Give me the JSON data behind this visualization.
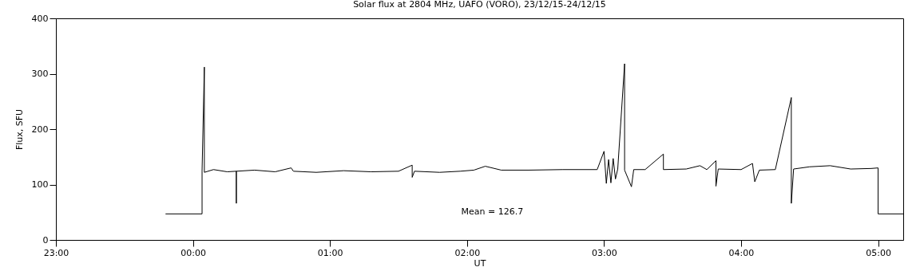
{
  "chart_data": {
    "type": "line",
    "title": "Solar flux at 2804 MHz, UAFO (VORO),  23/12/15-24/12/15",
    "xlabel": "UT",
    "ylabel": "Flux, SFU",
    "xlim": [
      "--12-23T23:00",
      "--12-24T05:11"
    ],
    "xticks": [
      {
        "value": "--12-23T23:00",
        "label": "23:00"
      },
      {
        "value": "--12-24T00:00",
        "label": "00:00"
      },
      {
        "value": "--12-24T01:00",
        "label": "01:00"
      },
      {
        "value": "--12-24T02:00",
        "label": "02:00"
      },
      {
        "value": "--12-24T03:00",
        "label": "03:00"
      },
      {
        "value": "--12-24T04:00",
        "label": "04:00"
      },
      {
        "value": "--12-24T05:00",
        "label": "05:00"
      }
    ],
    "ylim": [
      0,
      400
    ],
    "yticks": [
      0,
      100,
      200,
      300,
      400
    ],
    "grid": false,
    "annotations": [
      "Mean =  126.7"
    ],
    "series": [
      {
        "color": "#000000",
        "x": [
          "--12-23T23:48",
          "--12-24T00:04",
          "--12-24T00:04",
          "--12-24T00:05",
          "--12-24T00:05",
          "--12-24T00:09",
          "--12-24T00:15",
          "--12-24T00:19",
          "--12-24T00:19",
          "--12-24T00:19",
          "--12-24T00:27",
          "--12-24T00:36",
          "--12-24T00:43",
          "--12-24T00:44",
          "--12-24T00:54",
          "--12-24T01:06",
          "--12-24T01:18",
          "--12-24T01:30",
          "--12-24T01:36",
          "--12-24T01:36",
          "--12-24T01:37",
          "--12-24T01:48",
          "--12-24T01:57",
          "--12-24T02:03",
          "--12-24T02:08",
          "--12-24T02:15",
          "--12-24T02:27",
          "--12-24T02:42",
          "--12-24T02:57",
          "--12-24T03:00",
          "--12-24T03:01",
          "--12-24T03:02",
          "--12-24T03:03",
          "--12-24T03:04",
          "--12-24T03:05",
          "--12-24T03:06",
          "--12-24T03:09",
          "--12-24T03:09",
          "--12-24T03:12",
          "--12-24T03:13",
          "--12-24T03:18",
          "--12-24T03:26",
          "--12-24T03:26",
          "--12-24T03:36",
          "--12-24T03:42",
          "--12-24T03:45",
          "--12-24T03:49",
          "--12-24T03:49",
          "--12-24T03:50",
          "--12-24T04:00",
          "--12-24T04:05",
          "--12-24T04:06",
          "--12-24T04:08",
          "--12-24T04:15",
          "--12-24T04:22",
          "--12-24T04:22",
          "--12-24T04:23",
          "--12-24T04:30",
          "--12-24T04:39",
          "--12-24T04:48",
          "--12-24T04:57",
          "--12-24T05:00",
          "--12-24T05:00",
          "--12-24T05:11"
        ],
        "values": [
          47,
          47,
          125,
          312,
          122,
          127,
          123,
          124,
          66,
          124,
          126,
          123,
          130,
          124,
          122,
          125,
          123,
          124,
          135,
          113,
          124,
          122,
          124,
          126,
          133,
          126,
          126,
          127,
          127,
          160,
          102,
          145,
          103,
          147,
          110,
          128,
          318,
          126,
          96,
          127,
          127,
          155,
          127,
          128,
          134,
          127,
          143,
          97,
          128,
          127,
          138,
          105,
          126,
          127,
          257,
          66,
          128,
          132,
          134,
          128,
          129,
          130,
          47,
          47
        ]
      }
    ]
  }
}
